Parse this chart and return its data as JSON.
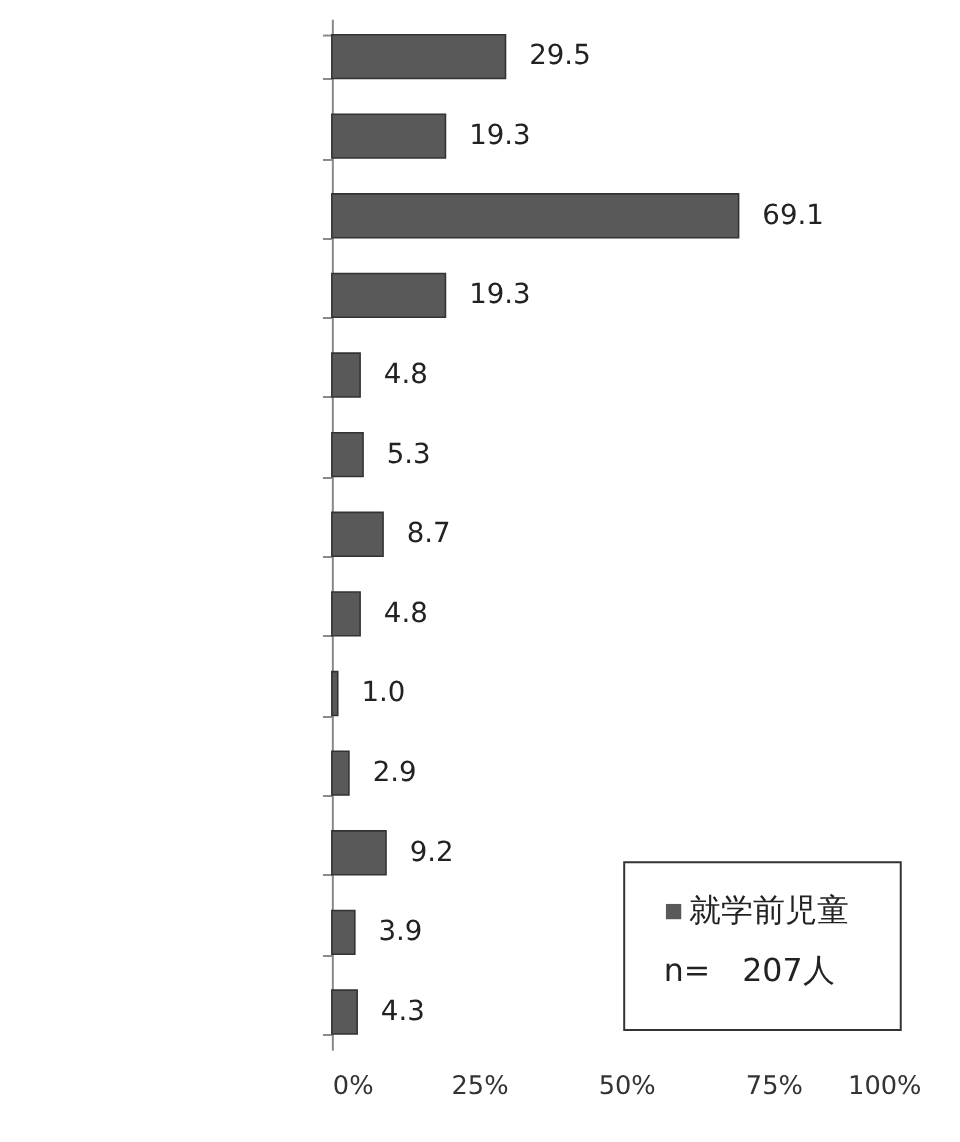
{
  "chart_data": {
    "type": "bar",
    "orientation": "horizontal",
    "categories": [
      null,
      null,
      null,
      null,
      null,
      null,
      null,
      null,
      null,
      null,
      null,
      null,
      null
    ],
    "series": [
      {
        "name": "就学前児童",
        "color": "#595959",
        "values": [
          29.5,
          19.3,
          69.1,
          19.3,
          4.8,
          5.3,
          8.7,
          4.8,
          1.0,
          2.9,
          9.2,
          3.9,
          4.3
        ]
      }
    ],
    "value_labels": [
      "29.5",
      "19.3",
      "69.1",
      "19.3",
      "4.8",
      "5.3",
      "8.7",
      "4.8",
      "1.0",
      "2.9",
      "9.2",
      "3.9",
      "4.3"
    ],
    "xlim": [
      0,
      100
    ],
    "xticks": [
      {
        "value": 0,
        "label": "0%"
      },
      {
        "value": 25,
        "label": "25%"
      },
      {
        "value": 50,
        "label": "50%"
      },
      {
        "value": 75,
        "label": "75%"
      },
      {
        "value": 100,
        "label": "100%"
      }
    ],
    "grid": false,
    "legend": "bottom right",
    "tick_labels": "x",
    "annotations": [
      "n=　207人"
    ]
  }
}
